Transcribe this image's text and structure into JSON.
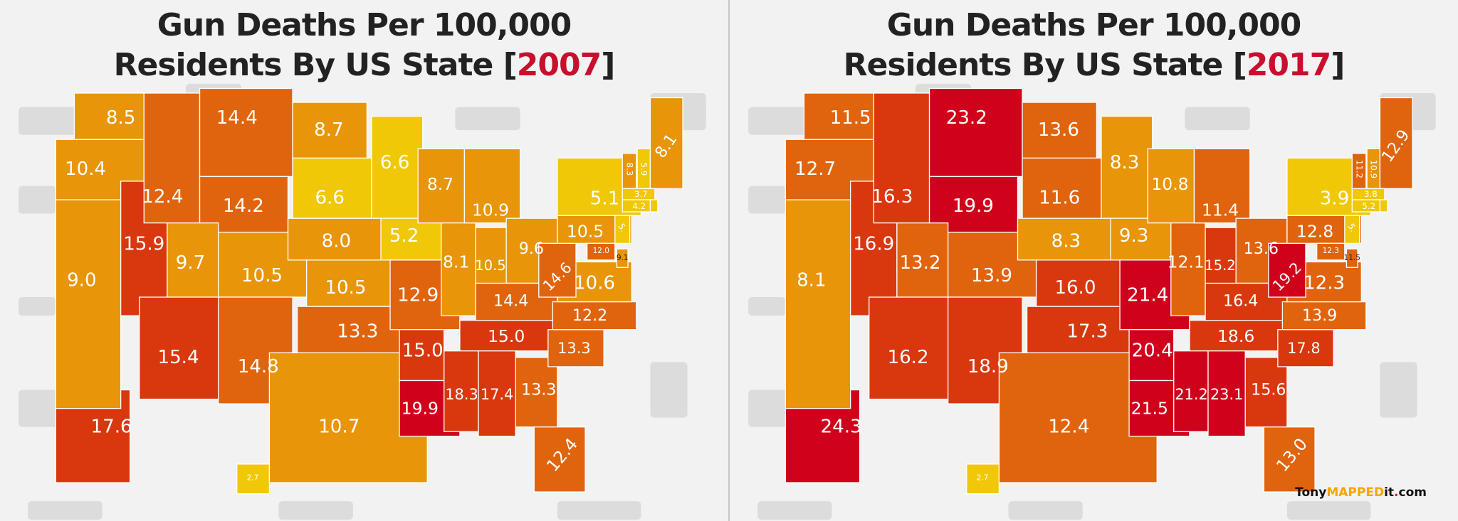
{
  "colors": {
    "bin1": "#f0c808",
    "bin2": "#e8950a",
    "bin3": "#e0640e",
    "bin4": "#d9380f",
    "bin5": "#d0021b",
    "background": "#f2f2f2",
    "year": "#c8102e"
  },
  "panels": [
    {
      "title_line1": "Gun Deaths Per 100,000",
      "title_line2": "Residents By US State [",
      "year": "2007",
      "title_close": "]",
      "values": {
        "WA": "8.5",
        "OR": "10.4",
        "CA": "9.0",
        "NV": "15.9",
        "ID": "12.4",
        "MT": "14.4",
        "WY": "14.2",
        "UT": "9.7",
        "AZ": "15.4",
        "CO": "10.5",
        "NM": "14.8",
        "ND": "8.7",
        "SD": "6.6",
        "NE": "8.0",
        "KS": "10.5",
        "OK": "13.3",
        "TX": "10.7",
        "MN": "6.6",
        "IA": "5.2",
        "MO": "12.9",
        "AR": "15.0",
        "LA": "19.9",
        "WI": "8.7",
        "IL": "8.1",
        "MI": "10.9",
        "IN": "10.5",
        "OH": "9.6",
        "KY": "14.4",
        "TN": "15.0",
        "MS": "18.3",
        "AL": "17.4",
        "GA": "13.3",
        "FL": "12.4",
        "SC": "13.3",
        "NC": "12.2",
        "VA": "10.6",
        "WV": "14.6",
        "PA": "10.5",
        "NY": "5.1",
        "VT": "8.3",
        "NH": "5.9",
        "ME": "8.1",
        "MA": "3.7",
        "CT": "4.2",
        "NJ": "5.",
        "MD": "12.0",
        "DE": "9.1",
        "AK": "17.6",
        "HI": "2.7"
      }
    },
    {
      "title_line1": "Gun Deaths Per 100,000",
      "title_line2": "Residents By US State [",
      "year": "2017",
      "title_close": "]",
      "values": {
        "WA": "11.5",
        "OR": "12.7",
        "CA": "8.1",
        "NV": "16.9",
        "ID": "16.3",
        "MT": "23.2",
        "WY": "19.9",
        "UT": "13.2",
        "AZ": "16.2",
        "CO": "13.9",
        "NM": "18.9",
        "ND": "13.6",
        "SD": "11.6",
        "NE": "8.3",
        "KS": "16.0",
        "OK": "17.3",
        "TX": "12.4",
        "MN": "8.3",
        "IA": "9.3",
        "MO": "21.4",
        "AR": "20.4",
        "LA": "21.5",
        "WI": "10.8",
        "IL": "12.1",
        "MI": "11.4",
        "IN": "15.2",
        "OH": "13.6",
        "KY": "16.4",
        "TN": "18.6",
        "MS": "21.2",
        "AL": "23.1",
        "GA": "15.6",
        "FL": "13.0",
        "SC": "17.8",
        "NC": "13.9",
        "VA": "12.3",
        "WV": "19.2",
        "PA": "12.8",
        "NY": "3.9",
        "VT": "11.2",
        "NH": "10.9",
        "ME": "12.9",
        "MA": "3.8",
        "CT": "5.2",
        "NJ": "5.",
        "MD": "12.3",
        "DE": "11.5",
        "AK": "24.3",
        "HI": "2.7"
      }
    }
  ],
  "logo": {
    "part1": "Tony",
    "part2": "MAPPED",
    "part3": "it",
    "part4": ".",
    "part5": "com"
  }
}
